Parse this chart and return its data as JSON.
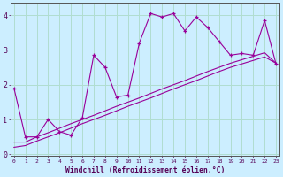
{
  "xlabel": "Windchill (Refroidissement éolien,°C)",
  "bg_color": "#cceeff",
  "line_color": "#990099",
  "grid_color": "#b0ddd0",
  "x_data": [
    0,
    1,
    2,
    3,
    4,
    5,
    6,
    7,
    8,
    9,
    10,
    11,
    12,
    13,
    14,
    15,
    16,
    17,
    18,
    19,
    20,
    21,
    22,
    23
  ],
  "y_main": [
    1.9,
    0.5,
    0.5,
    1.0,
    0.65,
    0.55,
    1.05,
    2.85,
    2.5,
    1.65,
    1.7,
    3.2,
    4.05,
    3.95,
    4.05,
    3.55,
    3.95,
    3.65,
    3.25,
    2.85,
    2.9,
    2.85,
    3.85,
    2.6
  ],
  "y_trend1": [
    0.35,
    0.35,
    0.5,
    0.62,
    0.75,
    0.88,
    1.0,
    1.12,
    1.25,
    1.38,
    1.5,
    1.62,
    1.75,
    1.88,
    2.0,
    2.12,
    2.25,
    2.38,
    2.5,
    2.62,
    2.72,
    2.82,
    2.92,
    2.62
  ],
  "y_trend2": [
    0.2,
    0.25,
    0.38,
    0.5,
    0.62,
    0.75,
    0.88,
    1.0,
    1.12,
    1.25,
    1.38,
    1.5,
    1.62,
    1.75,
    1.88,
    2.0,
    2.12,
    2.25,
    2.38,
    2.5,
    2.6,
    2.7,
    2.8,
    2.62
  ],
  "xlim": [
    0,
    23
  ],
  "ylim": [
    -0.05,
    4.35
  ],
  "yticks": [
    0,
    1,
    2,
    3,
    4
  ],
  "xticks": [
    0,
    1,
    2,
    3,
    4,
    5,
    6,
    7,
    8,
    9,
    10,
    11,
    12,
    13,
    14,
    15,
    16,
    17,
    18,
    19,
    20,
    21,
    22,
    23
  ]
}
